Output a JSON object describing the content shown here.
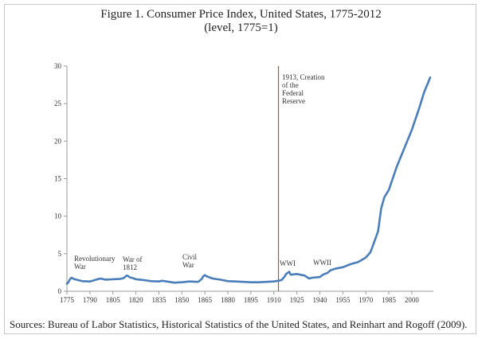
{
  "chart_data": {
    "type": "line",
    "title": "Figure 1. Consumer Price Index, United States, 1775-2012",
    "subtitle": "(level, 1775=1)",
    "xlabel": "",
    "ylabel": "",
    "xlim": [
      1775,
      2012
    ],
    "ylim": [
      0,
      30
    ],
    "x_ticks": [
      1775,
      1790,
      1805,
      1820,
      1835,
      1850,
      1865,
      1880,
      1895,
      1910,
      1925,
      1940,
      1955,
      1970,
      1985,
      2000
    ],
    "y_ticks": [
      0,
      5,
      10,
      15,
      20,
      25,
      30
    ],
    "grid": false,
    "legend": "none",
    "series": [
      {
        "color": "#4a7ebb",
        "x": [
          1775,
          1776,
          1777,
          1778,
          1779,
          1780,
          1782,
          1785,
          1790,
          1795,
          1797,
          1800,
          1805,
          1810,
          1812,
          1814,
          1815,
          1816,
          1818,
          1820,
          1825,
          1830,
          1835,
          1837,
          1840,
          1845,
          1850,
          1855,
          1860,
          1861,
          1863,
          1864,
          1865,
          1866,
          1868,
          1870,
          1875,
          1880,
          1885,
          1890,
          1895,
          1900,
          1905,
          1910,
          1913,
          1915,
          1917,
          1918,
          1920,
          1921,
          1925,
          1930,
          1933,
          1935,
          1940,
          1942,
          1945,
          1947,
          1950,
          1955,
          1960,
          1965,
          1970,
          1973,
          1975,
          1978,
          1980,
          1982,
          1985,
          1990,
          1995,
          2000,
          2005,
          2008,
          2010,
          2012
        ],
        "values": [
          1.0,
          1.2,
          1.6,
          1.8,
          1.7,
          1.6,
          1.5,
          1.35,
          1.3,
          1.6,
          1.7,
          1.55,
          1.6,
          1.65,
          1.75,
          2.1,
          2.0,
          1.85,
          1.75,
          1.6,
          1.5,
          1.35,
          1.3,
          1.4,
          1.3,
          1.15,
          1.2,
          1.3,
          1.25,
          1.3,
          1.65,
          2.0,
          2.15,
          2.0,
          1.85,
          1.7,
          1.55,
          1.35,
          1.3,
          1.25,
          1.2,
          1.2,
          1.25,
          1.3,
          1.4,
          1.5,
          1.95,
          2.3,
          2.6,
          2.2,
          2.3,
          2.1,
          1.7,
          1.8,
          1.9,
          2.2,
          2.45,
          2.8,
          3.0,
          3.2,
          3.6,
          3.9,
          4.5,
          5.2,
          6.3,
          8.0,
          11.0,
          12.5,
          13.5,
          16.5,
          19.0,
          21.5,
          24.5,
          26.5,
          27.5,
          28.5
        ]
      }
    ],
    "vertical_line": {
      "x": 1913,
      "color": "#a05a3c"
    },
    "annotations": [
      {
        "lines": [
          "Revolutionary",
          "War"
        ]
      },
      {
        "lines": [
          "War of",
          "1812"
        ]
      },
      {
        "lines": [
          "Civil",
          "War"
        ]
      },
      {
        "lines": [
          "1913, Creation",
          "of the",
          "Federal",
          "Reserve"
        ]
      },
      {
        "lines": [
          "WWI"
        ]
      },
      {
        "lines": [
          "WWII"
        ]
      }
    ],
    "source": "Sources: Bureau of Labor Statistics, Historical Statistics of the United States, and Reinhart and Rogoff (2009)."
  }
}
